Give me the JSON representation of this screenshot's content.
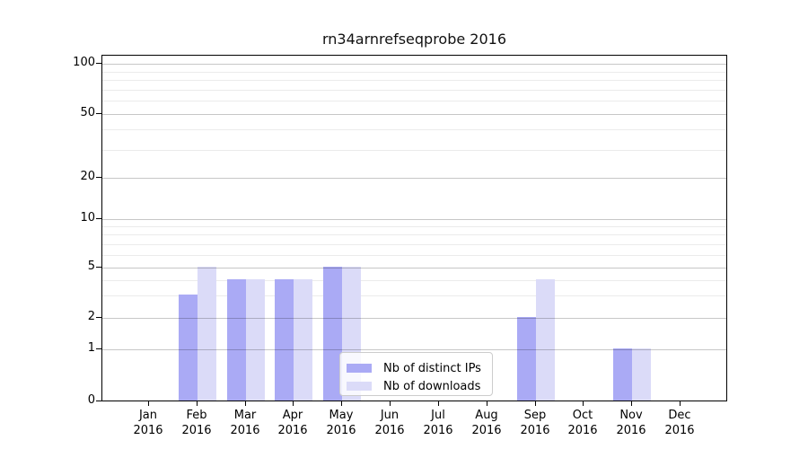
{
  "chart_data": {
    "type": "bar",
    "title": "rn34arnrefseqprobe 2016",
    "categories": [
      "Jan 2016",
      "Feb 2016",
      "Mar 2016",
      "Apr 2016",
      "May 2016",
      "Jun 2016",
      "Jul 2016",
      "Aug 2016",
      "Sep 2016",
      "Oct 2016",
      "Nov 2016",
      "Dec 2016"
    ],
    "series": [
      {
        "name": "Nb of distinct IPs",
        "color": "#aaaaf5",
        "values": [
          0,
          3,
          4,
          4,
          5,
          0,
          0,
          0,
          2,
          0,
          1,
          0
        ]
      },
      {
        "name": "Nb of downloads",
        "color": "#dbdbf8",
        "values": [
          0,
          5,
          4,
          4,
          5,
          0,
          0,
          0,
          4,
          0,
          1,
          0
        ]
      }
    ],
    "y_axis": {
      "scale": "symlog",
      "ticks": [
        0,
        1,
        2,
        5,
        10,
        20,
        50,
        100
      ],
      "minor_gridlines": [
        3,
        4,
        6,
        7,
        8,
        9,
        30,
        40,
        60,
        70,
        80,
        90
      ],
      "ylim": [
        0,
        110
      ]
    },
    "xlabel": "",
    "ylabel": "",
    "grid": "on",
    "legend": {
      "position": "lower-center-inside",
      "entries": [
        "Nb of distinct IPs",
        "Nb of downloads"
      ]
    },
    "colors": {
      "spine": "#000000",
      "major_grid": "#c8c8c8",
      "minor_grid": "#ebebeb",
      "text": "#000000",
      "legend_border": "#cccccc"
    }
  }
}
